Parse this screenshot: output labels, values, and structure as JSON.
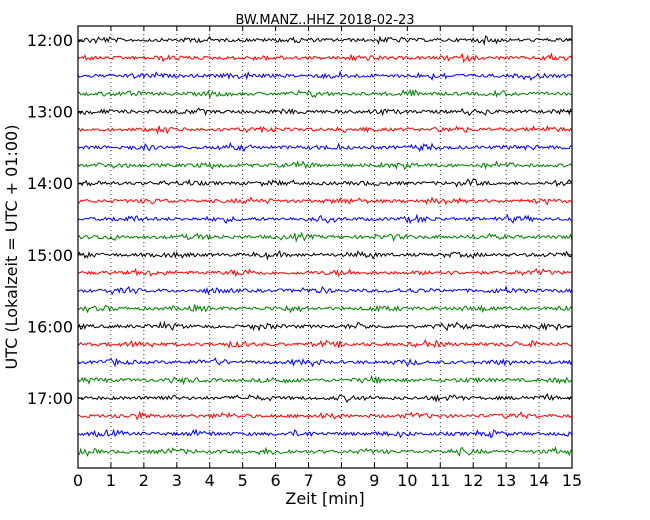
{
  "chart_data": {
    "type": "line",
    "title": "BW.MANZ..HHZ 2018-02-23",
    "xlabel": "Zeit  [min]",
    "ylabel": "UTC (Lokalzeit = UTC + 01:00)",
    "xlim": [
      0,
      15
    ],
    "x_ticks": [
      "0",
      "1",
      "2",
      "3",
      "4",
      "5",
      "6",
      "7",
      "8",
      "9",
      "10",
      "11",
      "12",
      "13",
      "14",
      "15"
    ],
    "y_tick_labels": [
      "12:00",
      "13:00",
      "14:00",
      "15:00",
      "16:00",
      "17:00"
    ],
    "grid": "vertical dotted at each minute",
    "trace_interval_min": 15,
    "trace_start": "12:00",
    "trace_count": 24,
    "trace_colors": [
      "#000000",
      "#ff0000",
      "#0000ff",
      "#008000"
    ],
    "annotations": "each row is a 15-minute seismometer trace; colors cycle black, red, blue, green"
  }
}
